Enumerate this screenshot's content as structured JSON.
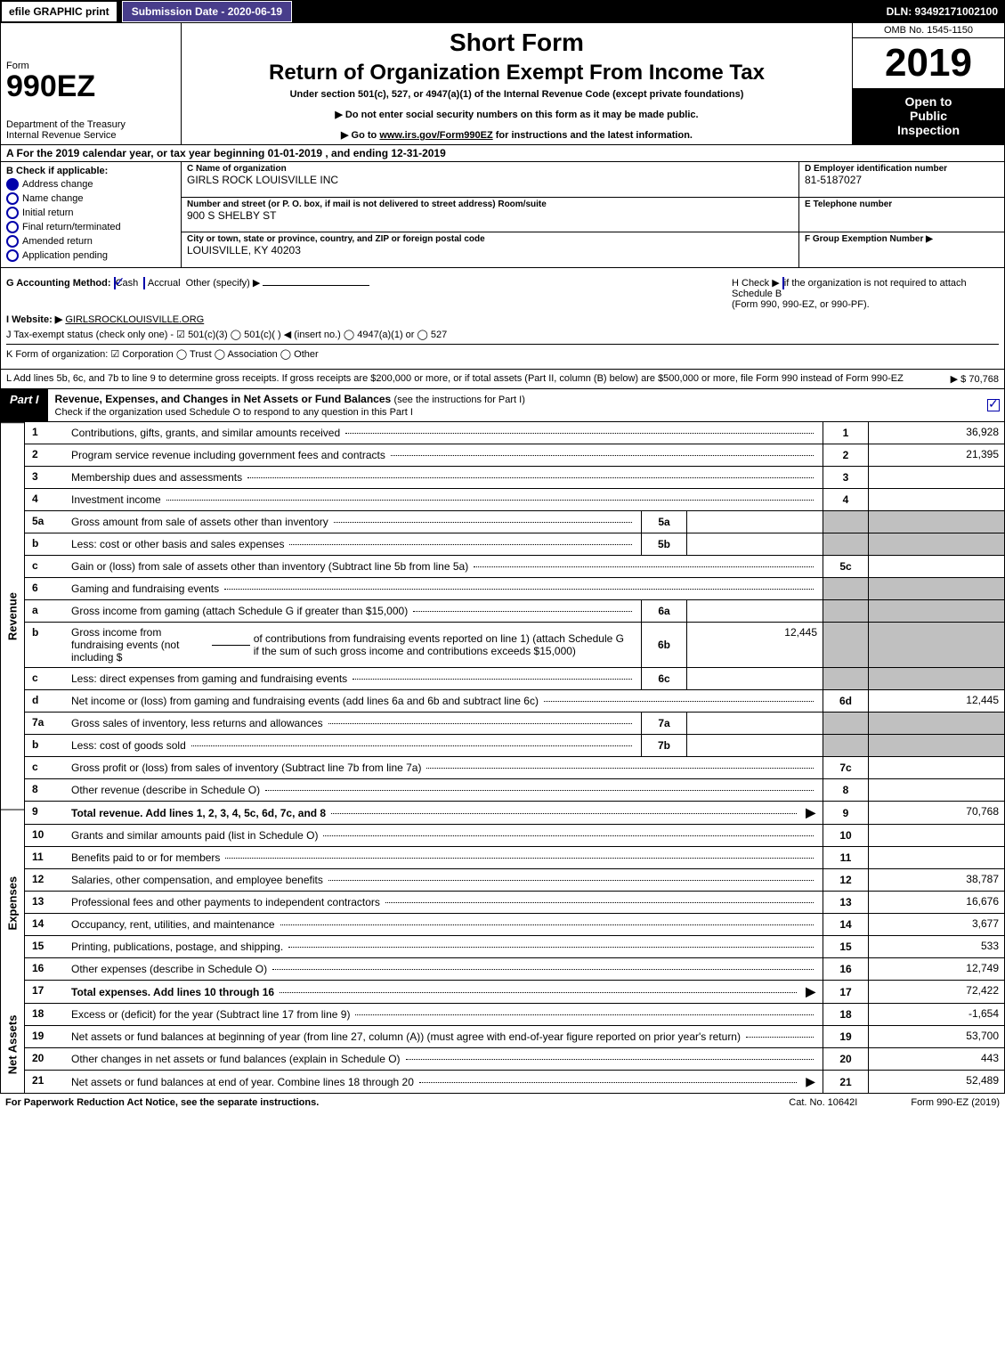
{
  "topbar": {
    "efile": "efile GRAPHIC print",
    "submission": "Submission Date - 2020-06-19",
    "dln": "DLN: 93492171002100"
  },
  "header": {
    "form_label": "Form",
    "form_number": "990EZ",
    "short_form": "Short Form",
    "return_title": "Return of Organization Exempt From Income Tax",
    "under_section": "Under section 501(c), 527, or 4947(a)(1) of the Internal Revenue Code (except private foundations)",
    "warn1": "▶ Do not enter social security numbers on this form as it may be made public.",
    "warn2_pre": "▶ Go to ",
    "warn2_link": "www.irs.gov/Form990EZ",
    "warn2_post": " for instructions and the latest information.",
    "dept1": "Department of the Treasury",
    "dept2": "Internal Revenue Service",
    "omb": "OMB No. 1545-1150",
    "year": "2019",
    "inspection1": "Open to",
    "inspection2": "Public",
    "inspection3": "Inspection"
  },
  "period": "A  For the 2019 calendar year, or tax year beginning 01-01-2019  , and ending 12-31-2019",
  "blockB": {
    "title": "B  Check if applicable:",
    "addr_change": "Address change",
    "name_change": "Name change",
    "initial_return": "Initial return",
    "final_return": "Final return/terminated",
    "amended": "Amended return",
    "pending": "Application pending",
    "addr_checked": true
  },
  "blockC": {
    "name_cap": "C Name of organization",
    "name": "GIRLS ROCK LOUISVILLE INC",
    "street_cap": "Number and street (or P. O. box, if mail is not delivered to street address)    Room/suite",
    "street": "900 S SHELBY ST",
    "city_cap": "City or town, state or province, country, and ZIP or foreign postal code",
    "city": "LOUISVILLE, KY  40203"
  },
  "blockD": {
    "ein_cap": "D Employer identification number",
    "ein": "81-5187027",
    "phone_cap": "E Telephone number",
    "phone": "",
    "group_cap": "F Group Exemption Number  ▶",
    "group": ""
  },
  "rowG": {
    "label": "G Accounting Method:",
    "cash": "Cash",
    "accrual": "Accrual",
    "other": "Other (specify) ▶"
  },
  "rowH": {
    "text1": "H  Check ▶",
    "text2": "if the organization is not required to attach Schedule B",
    "text3": "(Form 990, 990-EZ, or 990-PF)."
  },
  "rowI": {
    "label": "I Website: ▶",
    "value": "GIRLSROCKLOUISVILLE.ORG"
  },
  "rowJ": "J Tax-exempt status (check only one) - ☑ 501(c)(3)  ◯ 501(c)(  ) ◀ (insert no.)  ◯ 4947(a)(1) or  ◯ 527",
  "rowK": "K Form of organization:   ☑ Corporation   ◯ Trust   ◯ Association   ◯ Other",
  "rowL": {
    "text": "L Add lines 5b, 6c, and 7b to line 9 to determine gross receipts. If gross receipts are $200,000 or more, or if total assets (Part II, column (B) below) are $500,000 or more, file Form 990 instead of Form 990-EZ",
    "amount": "▶ $ 70,768"
  },
  "partI": {
    "label": "Part I",
    "title": "Revenue, Expenses, and Changes in Net Assets or Fund Balances",
    "paren": "(see the instructions for Part I)",
    "sub": "Check if the organization used Schedule O to respond to any question in this Part I",
    "checked": true
  },
  "tabs": {
    "revenue": "Revenue",
    "expenses": "Expenses",
    "netassets": "Net Assets"
  },
  "lines": {
    "1": {
      "n": "1",
      "d": "Contributions, gifts, grants, and similar amounts received",
      "ln": "1",
      "v": "36,928"
    },
    "2": {
      "n": "2",
      "d": "Program service revenue including government fees and contracts",
      "ln": "2",
      "v": "21,395"
    },
    "3": {
      "n": "3",
      "d": "Membership dues and assessments",
      "ln": "3",
      "v": ""
    },
    "4": {
      "n": "4",
      "d": "Investment income",
      "ln": "4",
      "v": ""
    },
    "5a": {
      "n": "5a",
      "d": "Gross amount from sale of assets other than inventory",
      "sc": "5a",
      "sv": ""
    },
    "5b": {
      "n": "b",
      "d": "Less: cost or other basis and sales expenses",
      "sc": "5b",
      "sv": ""
    },
    "5c": {
      "n": "c",
      "d": "Gain or (loss) from sale of assets other than inventory (Subtract line 5b from line 5a)",
      "ln": "5c",
      "v": ""
    },
    "6": {
      "n": "6",
      "d": "Gaming and fundraising events"
    },
    "6a": {
      "n": "a",
      "d": "Gross income from gaming (attach Schedule G if greater than $15,000)",
      "sc": "6a",
      "sv": ""
    },
    "6b": {
      "n": "b",
      "d1": "Gross income from fundraising events (not including $",
      "d2": "of contributions from fundraising events reported on line 1) (attach Schedule G if the sum of such gross income and contributions exceeds $15,000)",
      "sc": "6b",
      "sv": "12,445"
    },
    "6c": {
      "n": "c",
      "d": "Less: direct expenses from gaming and fundraising events",
      "sc": "6c",
      "sv": ""
    },
    "6d": {
      "n": "d",
      "d": "Net income or (loss) from gaming and fundraising events (add lines 6a and 6b and subtract line 6c)",
      "ln": "6d",
      "v": "12,445"
    },
    "7a": {
      "n": "7a",
      "d": "Gross sales of inventory, less returns and allowances",
      "sc": "7a",
      "sv": ""
    },
    "7b": {
      "n": "b",
      "d": "Less: cost of goods sold",
      "sc": "7b",
      "sv": ""
    },
    "7c": {
      "n": "c",
      "d": "Gross profit or (loss) from sales of inventory (Subtract line 7b from line 7a)",
      "ln": "7c",
      "v": ""
    },
    "8": {
      "n": "8",
      "d": "Other revenue (describe in Schedule O)",
      "ln": "8",
      "v": ""
    },
    "9": {
      "n": "9",
      "d": "Total revenue. Add lines 1, 2, 3, 4, 5c, 6d, 7c, and 8",
      "ln": "9",
      "v": "70,768",
      "arrow": true,
      "bold": true
    },
    "10": {
      "n": "10",
      "d": "Grants and similar amounts paid (list in Schedule O)",
      "ln": "10",
      "v": ""
    },
    "11": {
      "n": "11",
      "d": "Benefits paid to or for members",
      "ln": "11",
      "v": ""
    },
    "12": {
      "n": "12",
      "d": "Salaries, other compensation, and employee benefits",
      "ln": "12",
      "v": "38,787"
    },
    "13": {
      "n": "13",
      "d": "Professional fees and other payments to independent contractors",
      "ln": "13",
      "v": "16,676"
    },
    "14": {
      "n": "14",
      "d": "Occupancy, rent, utilities, and maintenance",
      "ln": "14",
      "v": "3,677"
    },
    "15": {
      "n": "15",
      "d": "Printing, publications, postage, and shipping.",
      "ln": "15",
      "v": "533"
    },
    "16": {
      "n": "16",
      "d": "Other expenses (describe in Schedule O)",
      "ln": "16",
      "v": "12,749"
    },
    "17": {
      "n": "17",
      "d": "Total expenses. Add lines 10 through 16",
      "ln": "17",
      "v": "72,422",
      "arrow": true,
      "bold": true
    },
    "18": {
      "n": "18",
      "d": "Excess or (deficit) for the year (Subtract line 17 from line 9)",
      "ln": "18",
      "v": "-1,654"
    },
    "19": {
      "n": "19",
      "d": "Net assets or fund balances at beginning of year (from line 27, column (A)) (must agree with end-of-year figure reported on prior year's return)",
      "ln": "19",
      "v": "53,700"
    },
    "20": {
      "n": "20",
      "d": "Other changes in net assets or fund balances (explain in Schedule O)",
      "ln": "20",
      "v": "443"
    },
    "21": {
      "n": "21",
      "d": "Net assets or fund balances at end of year. Combine lines 18 through 20",
      "ln": "21",
      "v": "52,489",
      "arrow": true
    }
  },
  "footer": {
    "left": "For Paperwork Reduction Act Notice, see the separate instructions.",
    "mid": "Cat. No. 10642I",
    "right": "Form 990-EZ (2019)"
  },
  "style": {
    "colors": {
      "black": "#000000",
      "white": "#ffffff",
      "darkpurple": "#483d8b",
      "shaded": "#c0c0c0",
      "check_blue": "#0000aa"
    },
    "widths": {
      "page": 1129,
      "left_col": 190,
      "right_col": 170,
      "dright_col": 230,
      "tab_col": 26,
      "num_col": 36,
      "subcol": 50,
      "subval": 140,
      "linecol": 50,
      "valcol": 140
    },
    "fonts": {
      "base": 12,
      "form_number": 34,
      "short_form": 28,
      "return_title": 24,
      "year": 44,
      "small": 11,
      "tiny": 10
    }
  }
}
